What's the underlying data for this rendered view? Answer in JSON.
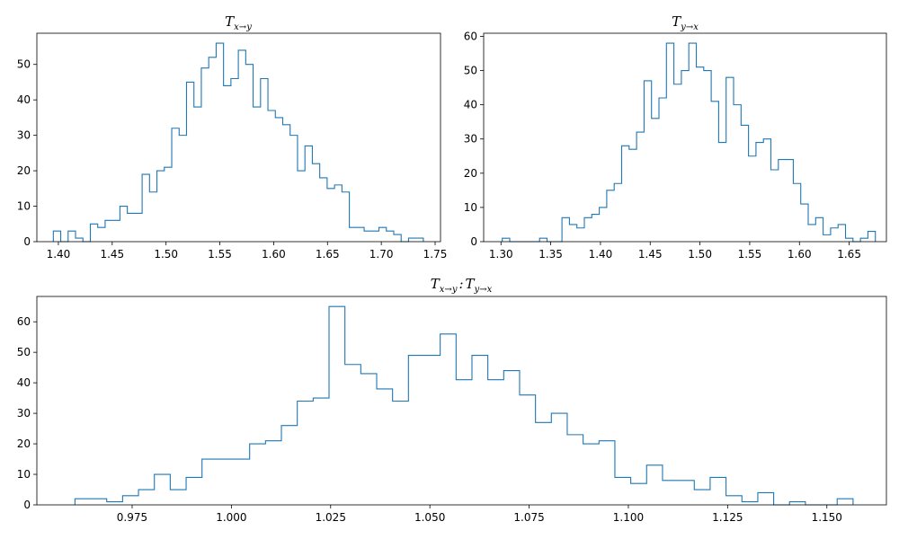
{
  "chart_data": [
    {
      "type": "histogram",
      "title": "T_{x→y}",
      "title_main": "T",
      "title_sub": "x→y",
      "xlabel": "",
      "ylabel": "",
      "xlim": [
        1.38,
        1.755
      ],
      "ylim": [
        0,
        58.8
      ],
      "xticks": [
        1.4,
        1.45,
        1.5,
        1.55,
        1.6,
        1.65,
        1.7,
        1.75
      ],
      "xtick_labels": [
        "1.40",
        "1.45",
        "1.50",
        "1.55",
        "1.60",
        "1.65",
        "1.70",
        "1.75"
      ],
      "yticks": [
        0,
        10,
        20,
        30,
        40,
        50
      ],
      "ytick_labels": [
        "0",
        "10",
        "20",
        "30",
        "40",
        "50"
      ],
      "bin_start": 1.3953,
      "bin_width": 0.006875,
      "counts": [
        3,
        0,
        3,
        1,
        0,
        5,
        4,
        6,
        6,
        10,
        8,
        8,
        19,
        14,
        20,
        21,
        32,
        30,
        45,
        38,
        49,
        52,
        56,
        44,
        46,
        54,
        50,
        38,
        46,
        37,
        35,
        33,
        30,
        20,
        27,
        22,
        18,
        15,
        16,
        14,
        4,
        4,
        3,
        3,
        4,
        3,
        2,
        0,
        1,
        1
      ],
      "color": "#1f77b4",
      "grid": false
    },
    {
      "type": "histogram",
      "title": "T_{y→x}",
      "title_main": "T",
      "title_sub": "y→x",
      "xlabel": "",
      "ylabel": "",
      "xlim": [
        1.2826,
        1.6874
      ],
      "ylim": [
        0,
        60.9
      ],
      "xticks": [
        1.3,
        1.35,
        1.4,
        1.45,
        1.5,
        1.55,
        1.6,
        1.65
      ],
      "xtick_labels": [
        "1.30",
        "1.35",
        "1.40",
        "1.45",
        "1.50",
        "1.55",
        "1.60",
        "1.65"
      ],
      "yticks": [
        0,
        10,
        20,
        30,
        40,
        50,
        60
      ],
      "ytick_labels": [
        "0",
        "10",
        "20",
        "30",
        "40",
        "50",
        "60"
      ],
      "bin_start": 1.3013,
      "bin_width": 0.0075,
      "counts": [
        1,
        0,
        0,
        0,
        0,
        1,
        0,
        0,
        7,
        5,
        4,
        7,
        8,
        10,
        15,
        17,
        28,
        27,
        32,
        47,
        36,
        42,
        58,
        46,
        50,
        58,
        51,
        50,
        41,
        29,
        48,
        40,
        34,
        25,
        29,
        30,
        21,
        24,
        24,
        17,
        11,
        5,
        7,
        2,
        4,
        5,
        1,
        0,
        1,
        3
      ],
      "color": "#1f77b4",
      "grid": false
    },
    {
      "type": "histogram",
      "title": "T_{x→y} : T_{y→x}",
      "title_main_1": "T",
      "title_sub_1": "x→y",
      "title_sep": ":",
      "title_main_2": "T",
      "title_sub_2": "y→x",
      "xlabel": "",
      "ylabel": "",
      "xlim": [
        0.951,
        1.165
      ],
      "ylim": [
        0,
        68.3
      ],
      "xticks": [
        0.975,
        1.0,
        1.025,
        1.05,
        1.075,
        1.1,
        1.125,
        1.15
      ],
      "xtick_labels": [
        "0.975",
        "1.000",
        "1.025",
        "1.050",
        "1.075",
        "1.100",
        "1.125",
        "1.150"
      ],
      "yticks": [
        0,
        10,
        20,
        30,
        40,
        50,
        60
      ],
      "ytick_labels": [
        "0",
        "10",
        "20",
        "30",
        "40",
        "50",
        "60"
      ],
      "bin_start": 0.9606,
      "bin_width": 0.004,
      "counts": [
        2,
        2,
        1,
        3,
        5,
        10,
        5,
        9,
        15,
        15,
        15,
        20,
        21,
        26,
        34,
        35,
        65,
        46,
        43,
        38,
        34,
        49,
        49,
        56,
        41,
        49,
        41,
        44,
        36,
        27,
        30,
        23,
        20,
        21,
        9,
        7,
        13,
        8,
        8,
        5,
        9,
        3,
        1,
        4,
        0,
        1,
        0,
        0,
        2
      ],
      "color": "#1f77b4",
      "grid": false
    }
  ]
}
